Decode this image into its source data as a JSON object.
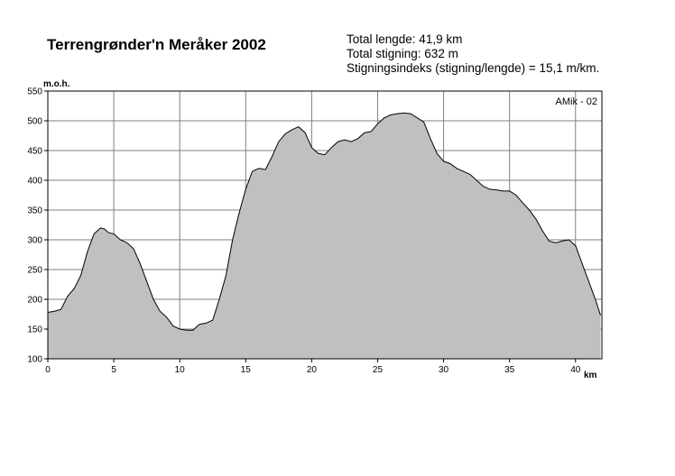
{
  "header": {
    "title": "Terrengrønder'n Meråker 2002",
    "stats": [
      "Total lengde: 41,9 km",
      "Total stigning:  632 m",
      "Stigningsindeks (stigning/lengde) = 15,1 m/km."
    ]
  },
  "watermark": "AMik - 02",
  "colors": {
    "fill": "#c0c0c0",
    "line": "#000000",
    "grid": "#808080"
  },
  "chart_data": {
    "type": "area",
    "title": "Terrengrønder'n Meråker 2002",
    "xlabel": "km",
    "ylabel": "m.o.h.",
    "xlim": [
      0,
      42
    ],
    "ylim": [
      100,
      550
    ],
    "xticks": [
      0,
      5,
      10,
      15,
      20,
      25,
      30,
      35,
      40
    ],
    "yticks": [
      100,
      150,
      200,
      250,
      300,
      350,
      400,
      450,
      500,
      550
    ],
    "grid": true,
    "x": [
      0,
      0.5,
      1,
      1.5,
      2,
      2.5,
      3,
      3.5,
      4,
      4.3,
      4.6,
      5,
      5.5,
      6,
      6.5,
      7,
      7.5,
      8,
      8.5,
      9,
      9.5,
      10,
      10.5,
      11,
      11.5,
      12,
      12.5,
      13,
      13.5,
      14,
      14.5,
      15,
      15.5,
      16,
      16.5,
      17,
      17.5,
      18,
      18.5,
      19,
      19.5,
      20,
      20.5,
      21,
      21.5,
      22,
      22.5,
      23,
      23.5,
      24,
      24.5,
      25,
      25.5,
      26,
      26.5,
      27,
      27.5,
      28,
      28.5,
      29,
      29.5,
      30,
      30.5,
      31,
      31.5,
      32,
      32.5,
      33,
      33.5,
      34,
      34.5,
      35,
      35.5,
      36,
      36.5,
      37,
      37.5,
      38,
      38.5,
      39,
      39.5,
      40,
      40.5,
      41,
      41.5,
      41.9
    ],
    "y": [
      178,
      180,
      183,
      205,
      218,
      240,
      280,
      310,
      320,
      318,
      312,
      310,
      300,
      295,
      285,
      260,
      230,
      200,
      180,
      170,
      155,
      150,
      148,
      148,
      158,
      160,
      165,
      200,
      240,
      300,
      345,
      385,
      415,
      420,
      418,
      440,
      465,
      478,
      485,
      490,
      480,
      455,
      445,
      443,
      455,
      465,
      468,
      465,
      470,
      480,
      482,
      495,
      505,
      510,
      512,
      513,
      512,
      505,
      498,
      470,
      445,
      432,
      428,
      420,
      415,
      410,
      400,
      390,
      385,
      384,
      382,
      382,
      375,
      362,
      350,
      335,
      315,
      298,
      295,
      298,
      300,
      290,
      260,
      230,
      200,
      173
    ]
  }
}
